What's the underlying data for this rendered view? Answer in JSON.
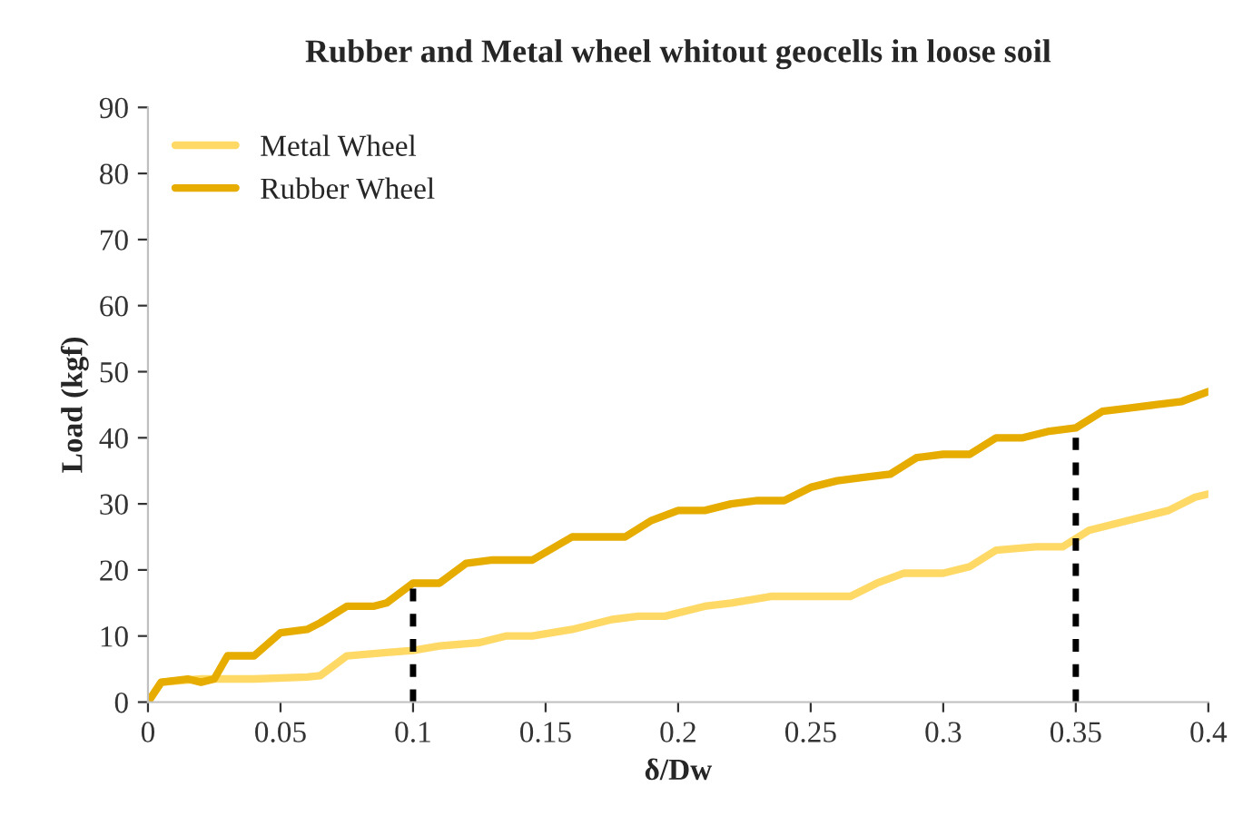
{
  "chart_data": {
    "type": "line",
    "title": "Rubber and Metal wheel whitout geocells in loose soil",
    "xlabel": "δ/Dw",
    "ylabel": "Load (kgf)",
    "xlim": [
      0,
      0.4
    ],
    "xticks": [
      0,
      0.05,
      0.1,
      0.15,
      0.2,
      0.25,
      0.3,
      0.35,
      0.4
    ],
    "ylim": [
      0,
      90
    ],
    "yticks": [
      0,
      10,
      20,
      30,
      40,
      50,
      60,
      70,
      80,
      90
    ],
    "grid": false,
    "legend": "top left",
    "marker": "none",
    "series": [
      {
        "name": "Metal Wheel",
        "color": "#ffd966",
        "x": [
          0,
          0.005,
          0.02,
          0.04,
          0.06,
          0.065,
          0.075,
          0.09,
          0.1,
          0.11,
          0.125,
          0.135,
          0.145,
          0.16,
          0.175,
          0.185,
          0.195,
          0.21,
          0.22,
          0.235,
          0.25,
          0.265,
          0.275,
          0.285,
          0.3,
          0.31,
          0.32,
          0.335,
          0.345,
          0.355,
          0.37,
          0.385,
          0.395,
          0.4
        ],
        "values": [
          0,
          3,
          3.5,
          3.5,
          3.8,
          4,
          7,
          7.5,
          7.8,
          8.5,
          9,
          10,
          10,
          11,
          12.5,
          13,
          13,
          14.5,
          15,
          16,
          16,
          16,
          18,
          19.5,
          19.5,
          20.5,
          23,
          23.5,
          23.5,
          26,
          27.5,
          29,
          31,
          31.5
        ]
      },
      {
        "name": "Rubber Wheel",
        "color": "#e6ac00",
        "x": [
          0,
          0.005,
          0.015,
          0.02,
          0.025,
          0.03,
          0.04,
          0.05,
          0.06,
          0.065,
          0.075,
          0.085,
          0.09,
          0.1,
          0.11,
          0.12,
          0.13,
          0.145,
          0.16,
          0.17,
          0.18,
          0.19,
          0.2,
          0.21,
          0.22,
          0.23,
          0.24,
          0.25,
          0.26,
          0.27,
          0.28,
          0.29,
          0.3,
          0.31,
          0.32,
          0.33,
          0.34,
          0.35,
          0.36,
          0.37,
          0.38,
          0.39,
          0.4
        ],
        "values": [
          0,
          3,
          3.5,
          3,
          3.5,
          7,
          7,
          10.5,
          11,
          12,
          14.5,
          14.5,
          15,
          18,
          18,
          21,
          21.5,
          21.5,
          25,
          25,
          25,
          27.5,
          29,
          29,
          30,
          30.5,
          30.5,
          32.5,
          33.5,
          34,
          34.5,
          37,
          37.5,
          37.5,
          40,
          40,
          41,
          41.5,
          44,
          44.5,
          45,
          45.5,
          47
        ]
      },
      {
        "color": "#000000",
        "line_style": "dashed",
        "x": [
          0.1,
          0.1
        ],
        "values": [
          0,
          18
        ]
      },
      {
        "color": "#000000",
        "line_style": "dashed",
        "x": [
          0.35,
          0.35
        ],
        "values": [
          0,
          40
        ]
      }
    ]
  }
}
